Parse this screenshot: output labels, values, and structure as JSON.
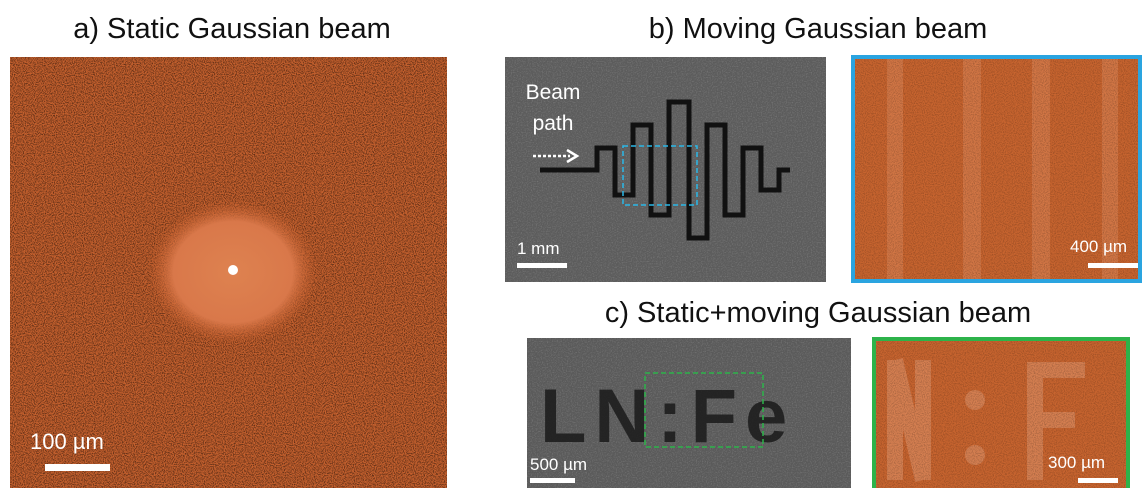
{
  "panels": {
    "a": {
      "title": "a) Static Gaussian beam",
      "scale": "100 µm"
    },
    "b": {
      "title": "b) Moving Gaussian beam",
      "beam_label": [
        "Beam",
        "path"
      ],
      "scale_left": "1 mm",
      "scale_right": "400 µm"
    },
    "c": {
      "title": "c) Static+moving Gaussian beam",
      "sample_text": "LN:Fe",
      "scale_left": "500 µm",
      "scale_right": "300 µm"
    }
  }
}
